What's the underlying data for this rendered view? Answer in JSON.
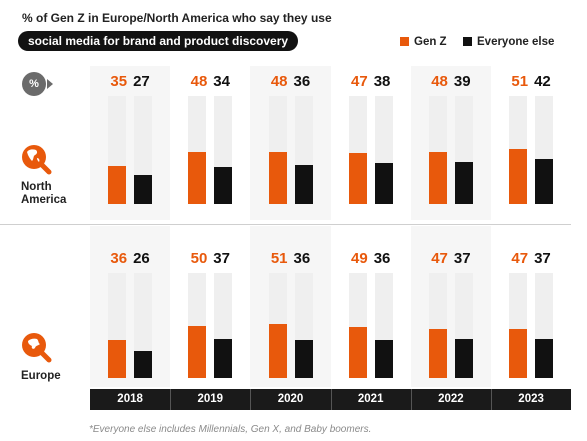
{
  "title": {
    "line1": "% of Gen Z in Europe/North America who say they use",
    "line2": "social media for brand and product discovery"
  },
  "legend": [
    {
      "name": "Gen Z",
      "color": "#E8590C"
    },
    {
      "name": "Everyone else",
      "color": "#111111"
    }
  ],
  "percent_badge": "%",
  "footnote": "*Everyone else includes Millennials, Gen X, and Baby boomers.",
  "chart_data": {
    "type": "bar",
    "categories": [
      "2018",
      "2019",
      "2020",
      "2021",
      "2022",
      "2023"
    ],
    "ylim": [
      0,
      100
    ],
    "colors": {
      "Gen Z": "#E8590C",
      "Everyone else": "#111111",
      "track": "#EFEFEF"
    },
    "panels": [
      {
        "region": "North America",
        "series": [
          {
            "name": "Gen Z",
            "values": [
              35,
              48,
              48,
              47,
              48,
              51
            ]
          },
          {
            "name": "Everyone else",
            "values": [
              27,
              34,
              36,
              38,
              39,
              42
            ]
          }
        ]
      },
      {
        "region": "Europe",
        "series": [
          {
            "name": "Gen Z",
            "values": [
              36,
              50,
              51,
              49,
              47,
              47
            ]
          },
          {
            "name": "Everyone else",
            "values": [
              26,
              37,
              36,
              36,
              37,
              37
            ]
          }
        ]
      }
    ]
  }
}
